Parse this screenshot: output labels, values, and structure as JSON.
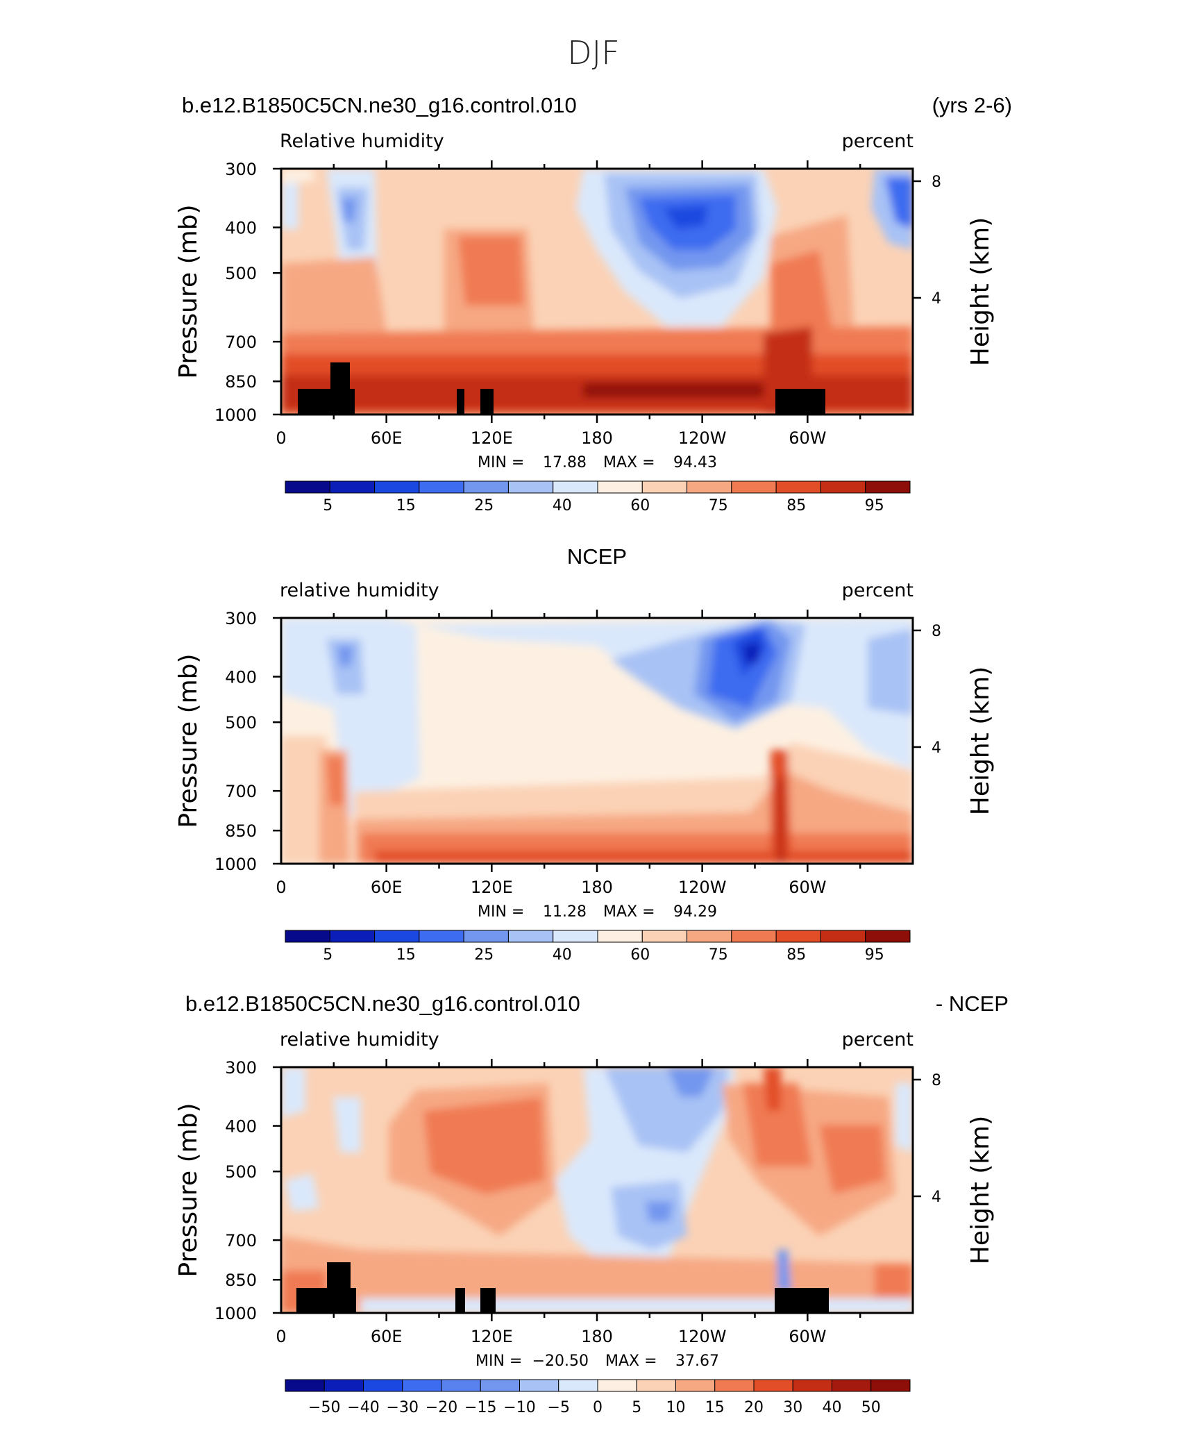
{
  "figure_title": "DJF",
  "colors": {
    "rh_levels": [
      "#080a8c",
      "#0b1fb8",
      "#1a48e0",
      "#3d6cf0",
      "#7397ef",
      "#a8c2f5",
      "#dae8fb",
      "#fdf0e2",
      "#fbd2b6",
      "#f6a883",
      "#f07a52",
      "#e24e27",
      "#c42e14",
      "#8e0f09"
    ],
    "frame": "#000000",
    "land": "#000000"
  },
  "chart_data": [
    {
      "type": "contour",
      "left_title": "b.e12.B1850C5CN.ne30_g16.control.010",
      "right_title": "(yrs 2-6)",
      "center_title": "",
      "field_label": "Relative humidity",
      "units": "percent",
      "ylabel": "Pressure (mb)",
      "ylabel_right": "Height (km)",
      "x_ticks": [
        "0",
        "60E",
        "120E",
        "180",
        "120W",
        "60W"
      ],
      "y_ticks": [
        "300",
        "400",
        "500",
        "700",
        "850",
        "1000"
      ],
      "y_right_ticks": [
        "8",
        "4"
      ],
      "min_label": "MIN =",
      "min_value": "17.88",
      "max_label": "MAX =",
      "max_value": "94.43",
      "colorbar_labels": [
        "5",
        "15",
        "25",
        "40",
        "60",
        "75",
        "85",
        "95"
      ]
    },
    {
      "type": "contour",
      "left_title": "",
      "right_title": "",
      "center_title": "NCEP",
      "field_label": "relative humidity",
      "units": "percent",
      "ylabel": "Pressure (mb)",
      "ylabel_right": "Height (km)",
      "x_ticks": [
        "0",
        "60E",
        "120E",
        "180",
        "120W",
        "60W"
      ],
      "y_ticks": [
        "300",
        "400",
        "500",
        "700",
        "850",
        "1000"
      ],
      "y_right_ticks": [
        "8",
        "4"
      ],
      "min_label": "MIN =",
      "min_value": "11.28",
      "max_label": "MAX =",
      "max_value": "94.29",
      "colorbar_labels": [
        "5",
        "15",
        "25",
        "40",
        "60",
        "75",
        "85",
        "95"
      ]
    },
    {
      "type": "contour",
      "left_title": "b.e12.B1850C5CN.ne30_g16.control.010",
      "right_title": "- NCEP",
      "center_title": "",
      "field_label": "relative humidity",
      "units": "percent",
      "ylabel": "Pressure (mb)",
      "ylabel_right": "Height (km)",
      "x_ticks": [
        "0",
        "60E",
        "120E",
        "180",
        "120W",
        "60W"
      ],
      "y_ticks": [
        "300",
        "400",
        "500",
        "700",
        "850",
        "1000"
      ],
      "y_right_ticks": [
        "8",
        "4"
      ],
      "min_label": "MIN =",
      "min_value": "−20.50",
      "max_label": "MAX =",
      "max_value": "37.67",
      "colorbar_labels": [
        "−50",
        "−40",
        "−30",
        "−20",
        "−15",
        "−10",
        "−5",
        "0",
        "5",
        "10",
        "15",
        "20",
        "30",
        "40",
        "50"
      ]
    }
  ]
}
